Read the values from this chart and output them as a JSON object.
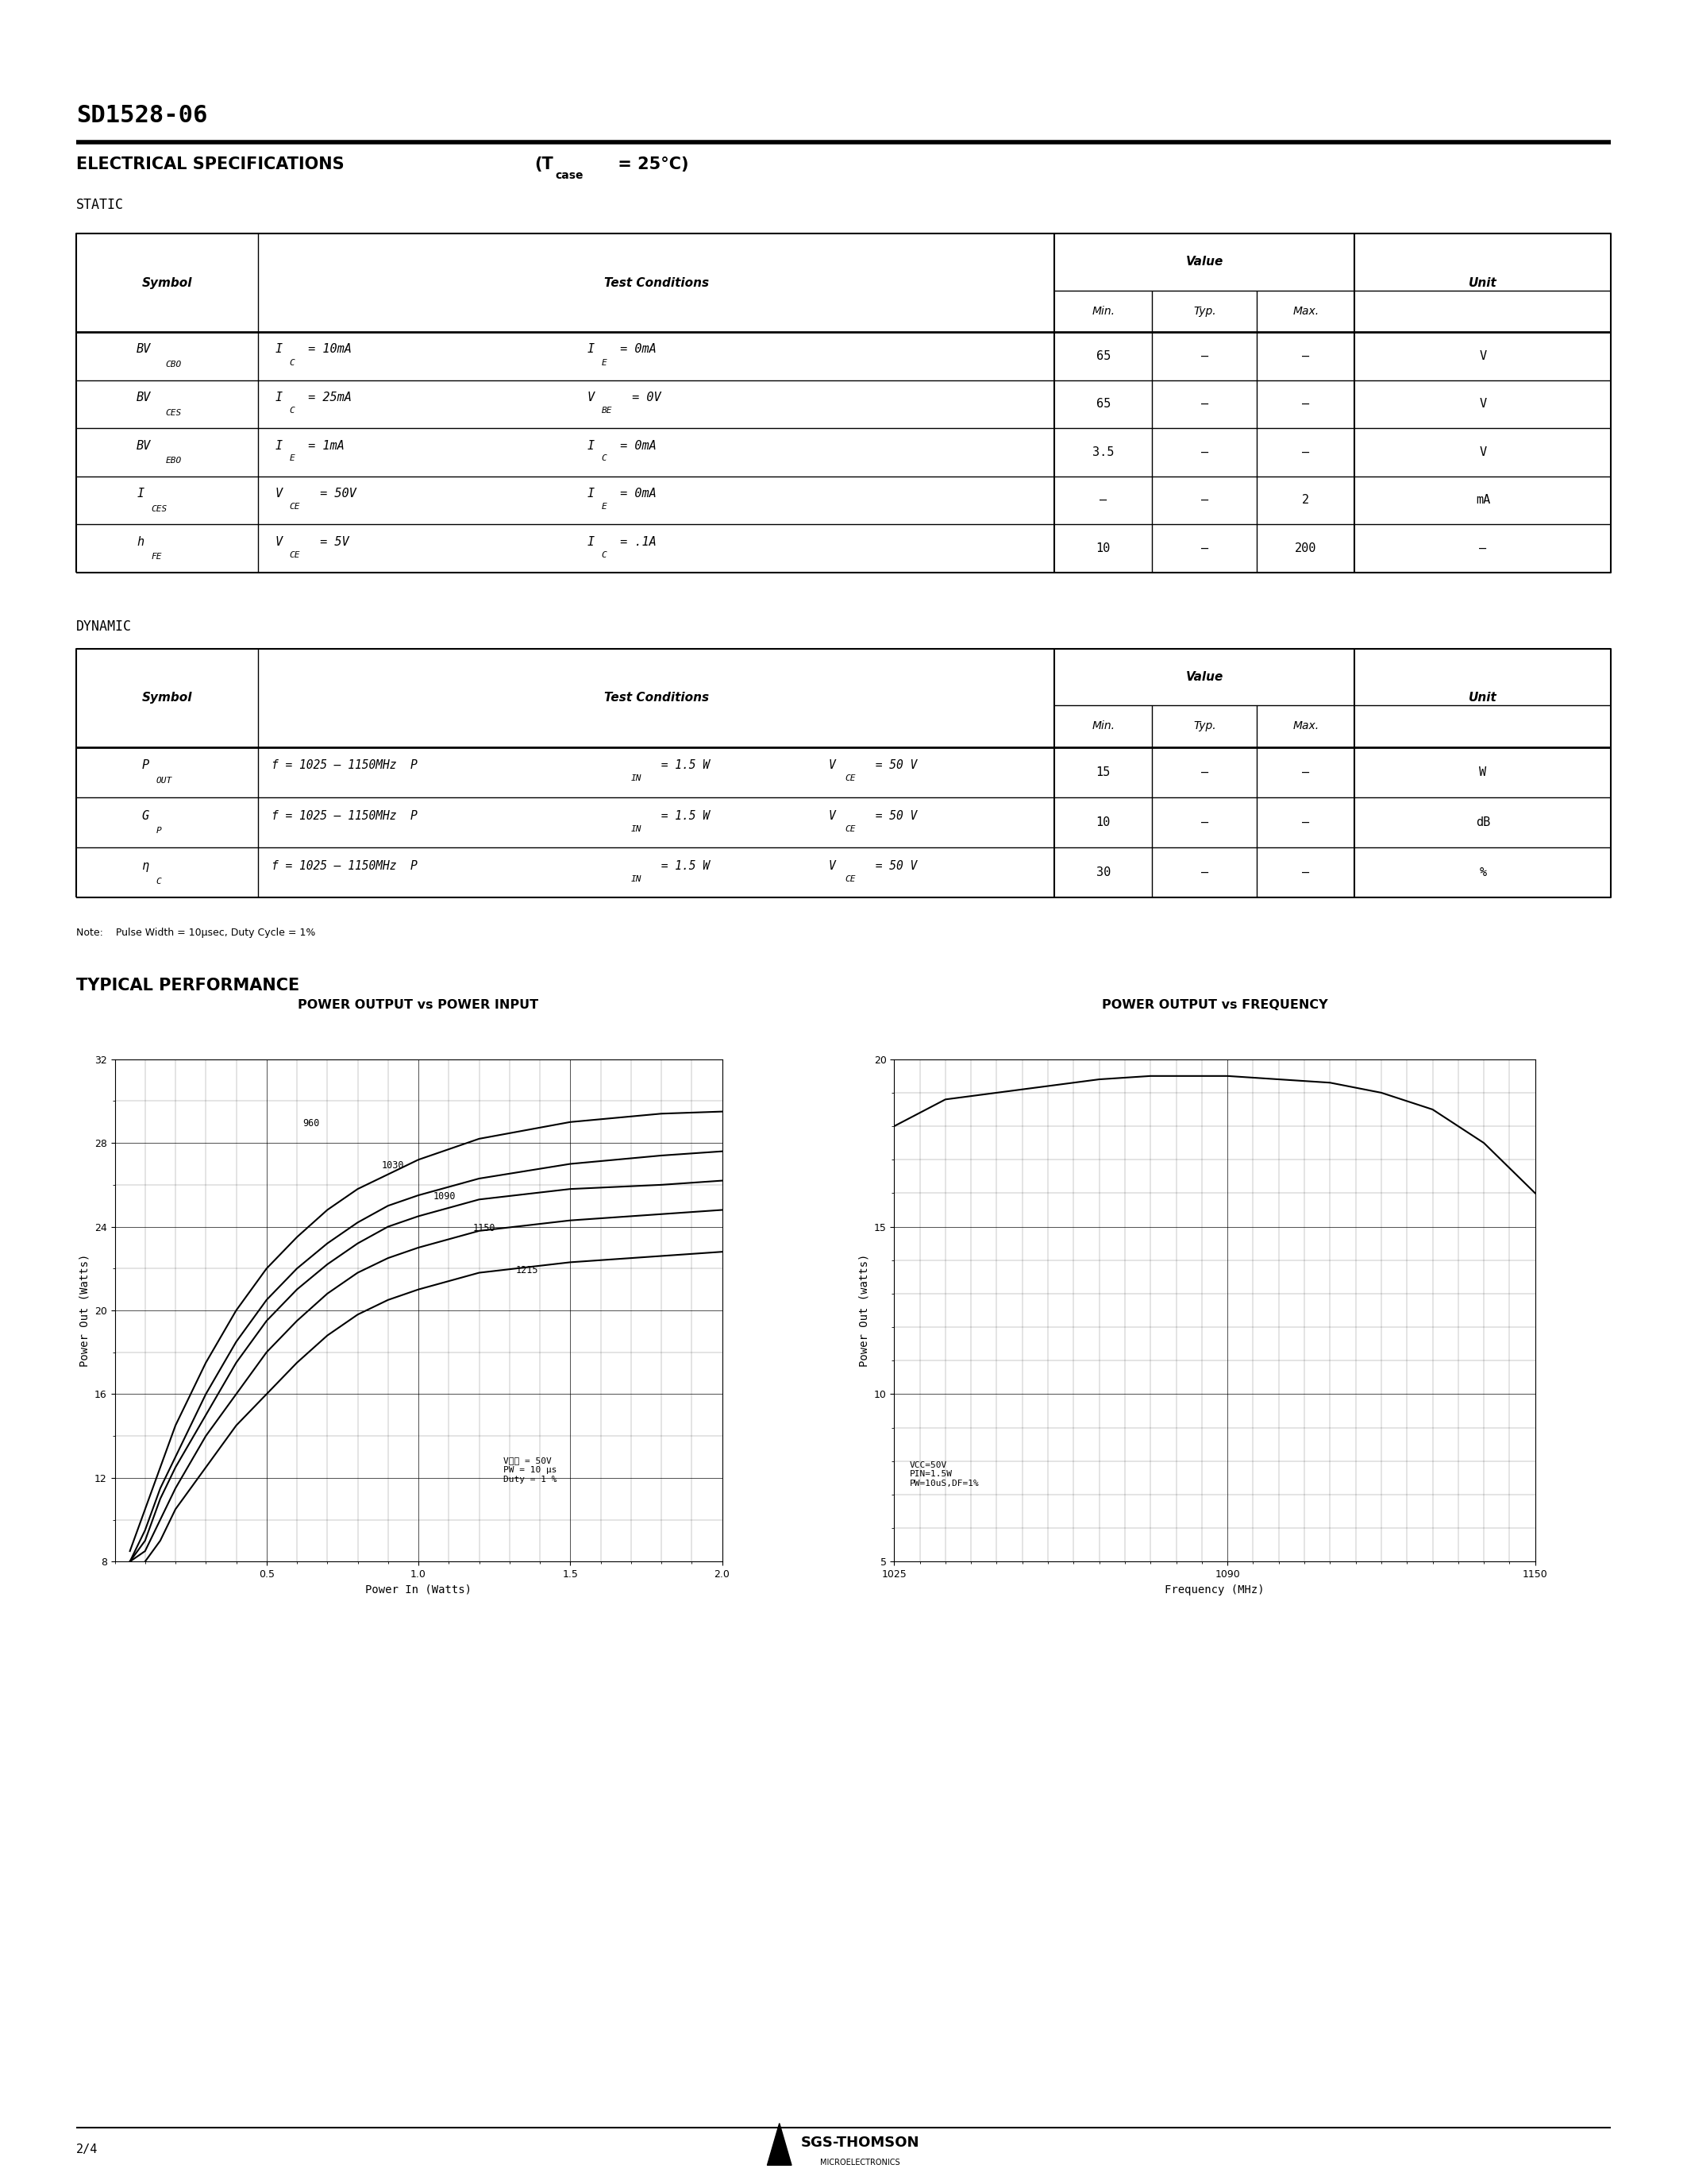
{
  "title": "SD1528-06",
  "elec_spec_title": "ELECTRICAL SPECIFICATIONS",
  "static_label": "STATIC",
  "dynamic_label": "DYNAMIC",
  "typical_perf_label": "TYPICAL PERFORMANCE",
  "note_text": "Note:    Pulse Width = 10μsec, Duty Cycle = 1%",
  "static_rows": [
    {
      "symbol": "BV",
      "symbol_sub": "CBO",
      "cond1": "I",
      "cond1_sub": "C",
      "cond1_val": " = 10mA",
      "cond2": "I",
      "cond2_sub": "E",
      "cond2_val": " = 0mA",
      "min": "65",
      "typ": "—",
      "max": "—",
      "unit": "V"
    },
    {
      "symbol": "BV",
      "symbol_sub": "CES",
      "cond1": "I",
      "cond1_sub": "C",
      "cond1_val": " = 25mA",
      "cond2": "V",
      "cond2_sub": "BE",
      "cond2_val": " = 0V",
      "min": "65",
      "typ": "—",
      "max": "—",
      "unit": "V"
    },
    {
      "symbol": "BV",
      "symbol_sub": "EBO",
      "cond1": "I",
      "cond1_sub": "E",
      "cond1_val": " = 1mA",
      "cond2": "I",
      "cond2_sub": "C",
      "cond2_val": " = 0mA",
      "min": "3.5",
      "typ": "—",
      "max": "—",
      "unit": "V"
    },
    {
      "symbol": "I",
      "symbol_sub": "CES",
      "cond1": "V",
      "cond1_sub": "CE",
      "cond1_val": " = 50V",
      "cond2": "I",
      "cond2_sub": "E",
      "cond2_val": " = 0mA",
      "min": "—",
      "typ": "—",
      "max": "2",
      "unit": "mA"
    },
    {
      "symbol": "h",
      "symbol_sub": "FE",
      "cond1": "V",
      "cond1_sub": "CE",
      "cond1_val": " = 5V",
      "cond2": "I",
      "cond2_sub": "C",
      "cond2_val": " = .1A",
      "min": "10",
      "typ": "—",
      "max": "200",
      "unit": "—"
    }
  ],
  "dynamic_rows": [
    {
      "symbol": "P",
      "symbol_sub": "OUT",
      "cond_main": "f = 1025 — 1150MHz  P",
      "cond_sub": "IN",
      "cond_val": " = 1.5 W",
      "cond2": "V",
      "cond2_sub": "CE",
      "cond2_val": " = 50 V",
      "min": "15",
      "typ": "—",
      "max": "—",
      "unit": "W"
    },
    {
      "symbol": "G",
      "symbol_sub": "P",
      "cond_main": "f = 1025 — 1150MHz  P",
      "cond_sub": "IN",
      "cond_val": " = 1.5 W",
      "cond2": "V",
      "cond2_sub": "CE",
      "cond2_val": " = 50 V",
      "min": "10",
      "typ": "—",
      "max": "—",
      "unit": "dB"
    },
    {
      "symbol": "η",
      "symbol_sub": "C",
      "cond_main": "f = 1025 — 1150MHz  P",
      "cond_sub": "IN",
      "cond_val": " = 1.5 W",
      "cond2": "V",
      "cond2_sub": "CE",
      "cond2_val": " = 50 V",
      "min": "30",
      "typ": "—",
      "max": "—",
      "unit": "%"
    }
  ],
  "graph1_title": "POWER OUTPUT vs POWER INPUT",
  "graph1_xlabel": "Power In (Watts)",
  "graph1_ylabel": "Power Out (Watts)",
  "graph1_curves": [
    {
      "label": "960",
      "x": [
        0.05,
        0.1,
        0.15,
        0.2,
        0.3,
        0.4,
        0.5,
        0.6,
        0.7,
        0.8,
        0.9,
        1.0,
        1.2,
        1.5,
        1.8,
        2.0
      ],
      "y": [
        8.5,
        10.5,
        12.5,
        14.5,
        17.5,
        20.0,
        22.0,
        23.5,
        24.8,
        25.8,
        26.5,
        27.2,
        28.2,
        29.0,
        29.4,
        29.5
      ]
    },
    {
      "label": "1030",
      "x": [
        0.05,
        0.1,
        0.15,
        0.2,
        0.3,
        0.4,
        0.5,
        0.6,
        0.7,
        0.8,
        0.9,
        1.0,
        1.2,
        1.5,
        1.8,
        2.0
      ],
      "y": [
        8.0,
        9.5,
        11.5,
        13.0,
        16.0,
        18.5,
        20.5,
        22.0,
        23.2,
        24.2,
        25.0,
        25.5,
        26.3,
        27.0,
        27.4,
        27.6
      ]
    },
    {
      "label": "1090",
      "x": [
        0.05,
        0.1,
        0.15,
        0.2,
        0.3,
        0.4,
        0.5,
        0.6,
        0.7,
        0.8,
        0.9,
        1.0,
        1.2,
        1.5,
        1.8,
        2.0
      ],
      "y": [
        8.0,
        9.0,
        11.0,
        12.5,
        15.0,
        17.5,
        19.5,
        21.0,
        22.2,
        23.2,
        24.0,
        24.5,
        25.3,
        25.8,
        26.0,
        26.2
      ]
    },
    {
      "label": "1150",
      "x": [
        0.05,
        0.1,
        0.15,
        0.2,
        0.3,
        0.4,
        0.5,
        0.6,
        0.7,
        0.8,
        0.9,
        1.0,
        1.2,
        1.5,
        1.8,
        2.0
      ],
      "y": [
        8.0,
        8.5,
        10.0,
        11.5,
        14.0,
        16.0,
        18.0,
        19.5,
        20.8,
        21.8,
        22.5,
        23.0,
        23.8,
        24.3,
        24.6,
        24.8
      ]
    },
    {
      "label": "1215",
      "x": [
        0.1,
        0.15,
        0.2,
        0.3,
        0.4,
        0.5,
        0.6,
        0.7,
        0.8,
        0.9,
        1.0,
        1.2,
        1.5,
        1.8,
        2.0
      ],
      "y": [
        8.0,
        9.0,
        10.5,
        12.5,
        14.5,
        16.0,
        17.5,
        18.8,
        19.8,
        20.5,
        21.0,
        21.8,
        22.3,
        22.6,
        22.8
      ]
    }
  ],
  "graph2_title": "POWER OUTPUT vs FREQUENCY",
  "graph2_xlabel": "Frequency (MHz)",
  "graph2_ylabel": "Power Out (watts)",
  "graph2_curve_x": [
    1025,
    1035,
    1045,
    1055,
    1065,
    1075,
    1085,
    1090,
    1100,
    1110,
    1120,
    1130,
    1140,
    1150
  ],
  "graph2_curve_y": [
    18.0,
    18.8,
    19.0,
    19.2,
    19.4,
    19.5,
    19.5,
    19.5,
    19.4,
    19.3,
    19.0,
    18.5,
    17.5,
    16.0
  ],
  "footer_page": "2/4",
  "footer_logo_text": "SGS-THOMSON",
  "footer_logo_sub": "MICROELECTRONICS"
}
